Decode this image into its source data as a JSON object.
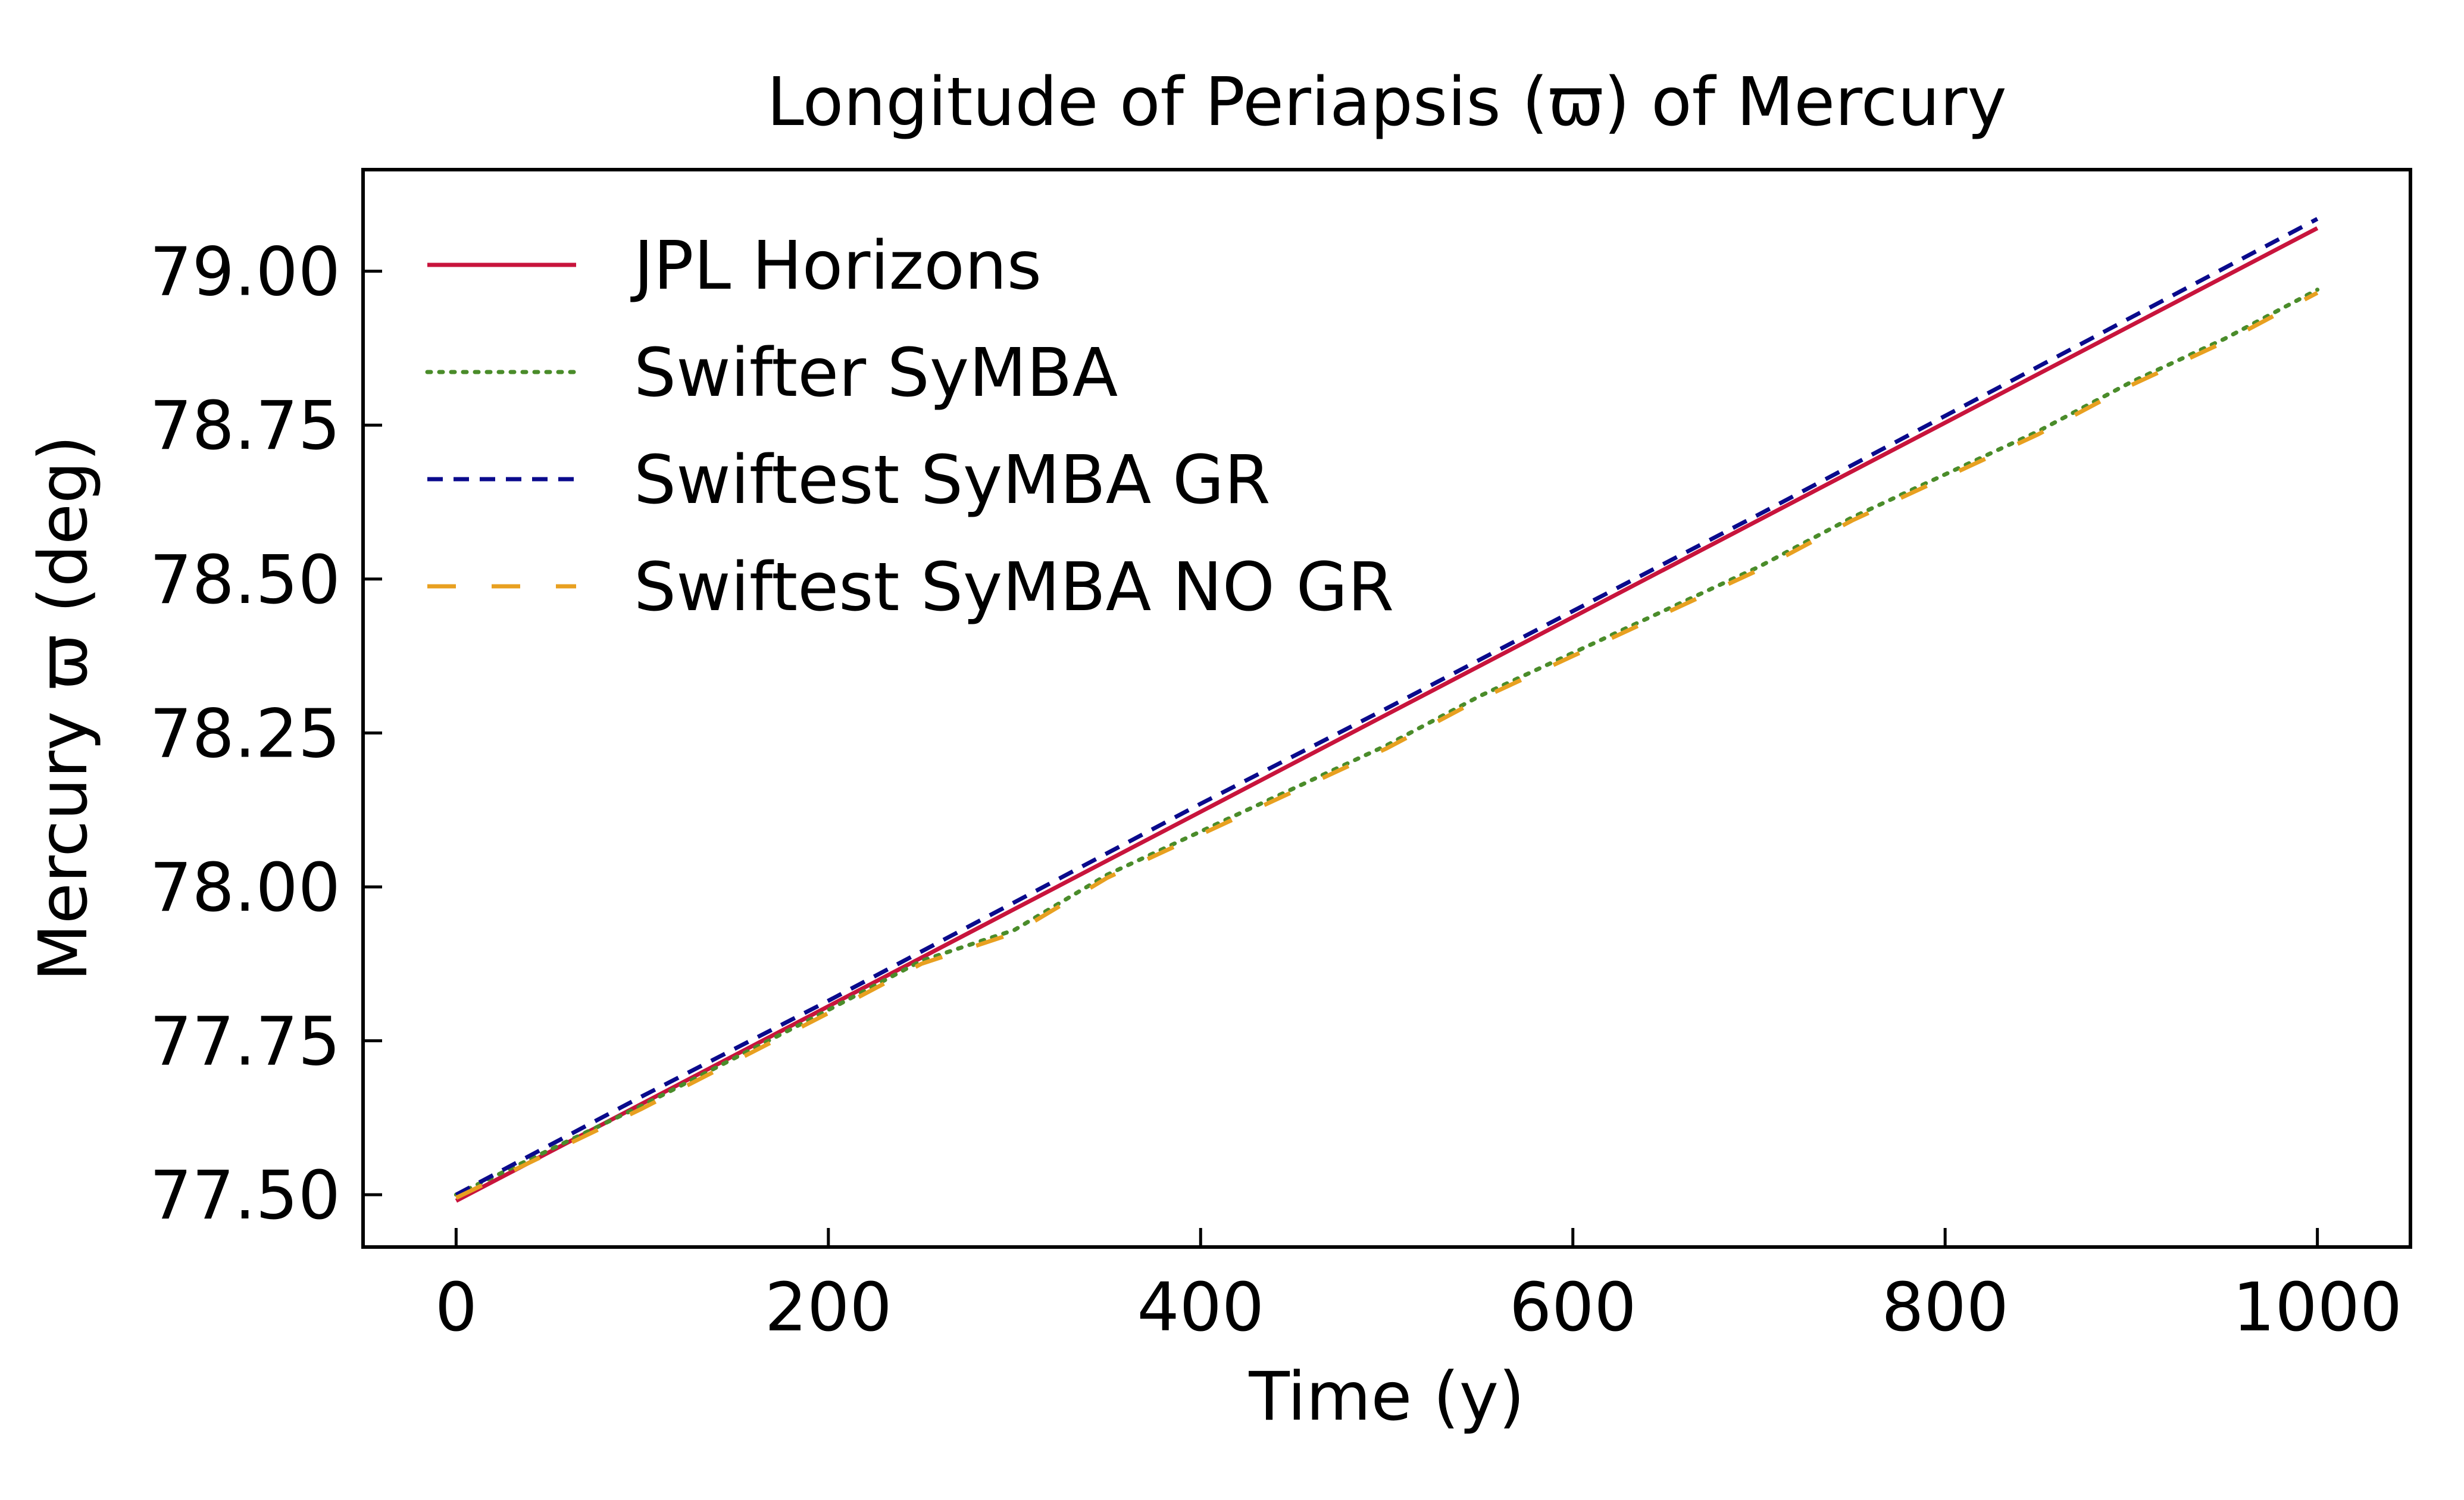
{
  "chart_data": {
    "type": "line",
    "title": "Longitude of Periapsis (ϖ) of Mercury",
    "xlabel": "Time (y)",
    "ylabel": "Mercury ϖ (deg)",
    "xlim": [
      -50,
      1050
    ],
    "ylim": [
      77.415,
      79.165
    ],
    "xticks": [
      0,
      200,
      400,
      600,
      800,
      1000
    ],
    "xtick_labels": [
      "0",
      "200",
      "400",
      "600",
      "800",
      "1000"
    ],
    "yticks": [
      77.5,
      77.75,
      78.0,
      78.25,
      78.5,
      78.75,
      79.0
    ],
    "ytick_labels": [
      "77.50",
      "77.75",
      "78.00",
      "78.25",
      "78.50",
      "78.75",
      "79.00"
    ],
    "grid": false,
    "legend_position": "upper-left",
    "series": [
      {
        "name": "JPL Horizons",
        "color": "#c8143c",
        "style": "solid",
        "x": [
          0,
          100,
          200,
          300,
          400,
          500,
          600,
          700,
          800,
          900,
          1000
        ],
        "y": [
          77.49,
          77.648,
          77.806,
          77.964,
          78.122,
          78.28,
          78.438,
          78.596,
          78.754,
          78.912,
          79.07
        ]
      },
      {
        "name": "Swifter SyMBA",
        "color": "#4a8c2a",
        "style": "dotted",
        "x": [
          0,
          100,
          200,
          250,
          300,
          350,
          400,
          450,
          500,
          550,
          600,
          650,
          700,
          750,
          800,
          850,
          900,
          950,
          1000
        ],
        "y": [
          77.5,
          77.645,
          77.8,
          77.88,
          77.93,
          78.02,
          78.09,
          78.16,
          78.23,
          78.31,
          78.38,
          78.45,
          78.52,
          78.6,
          78.67,
          78.74,
          78.82,
          78.89,
          78.97
        ]
      },
      {
        "name": "Swiftest SyMBA GR",
        "color": "#0a0a8c",
        "style": "dashed",
        "x": [
          0,
          100,
          200,
          300,
          400,
          500,
          600,
          700,
          800,
          900,
          1000
        ],
        "y": [
          77.5,
          77.66,
          77.815,
          77.975,
          78.135,
          78.29,
          78.448,
          78.605,
          78.765,
          78.925,
          79.085
        ]
      },
      {
        "name": "Swiftest SyMBA NO GR",
        "color": "#e8a020",
        "style": "longdash",
        "x": [
          0,
          100,
          200,
          250,
          300,
          350,
          400,
          450,
          500,
          550,
          600,
          650,
          700,
          750,
          800,
          850,
          900,
          950,
          1000
        ],
        "y": [
          77.495,
          77.64,
          77.795,
          77.875,
          77.925,
          78.015,
          78.085,
          78.155,
          78.225,
          78.305,
          78.375,
          78.445,
          78.515,
          78.595,
          78.665,
          78.735,
          78.815,
          78.885,
          78.965
        ]
      }
    ]
  }
}
